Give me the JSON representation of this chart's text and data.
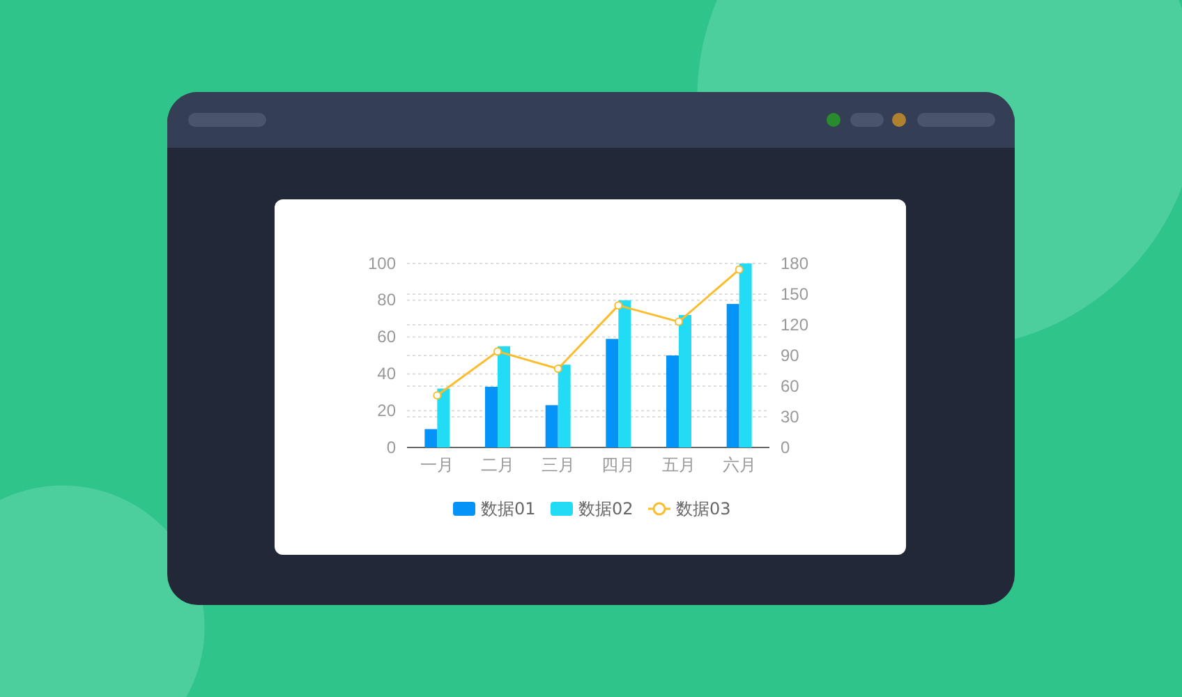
{
  "chart_data": {
    "type": "bar",
    "categories": [
      "一月",
      "二月",
      "三月",
      "四月",
      "五月",
      "六月"
    ],
    "series": [
      {
        "name": "数据01",
        "color": "#0593f7",
        "values": [
          10,
          33,
          23,
          59,
          50,
          78
        ]
      },
      {
        "name": "数据02",
        "color": "#22dbf5",
        "values": [
          32,
          55,
          45,
          80,
          72,
          100
        ]
      },
      {
        "name": "数据03",
        "type": "line",
        "axis": "y2",
        "color": "#fbbd2c",
        "values": [
          51,
          94,
          77,
          139,
          123,
          174
        ]
      }
    ],
    "ylim": [
      0,
      100
    ],
    "yticks": [
      0,
      20,
      40,
      60,
      80,
      100
    ],
    "y2lim": [
      0,
      180
    ],
    "y2ticks": [
      0,
      30,
      60,
      90,
      120,
      150,
      180
    ],
    "grid": "y",
    "legend": "bottom",
    "marker": "circle",
    "line_style": "solid"
  }
}
